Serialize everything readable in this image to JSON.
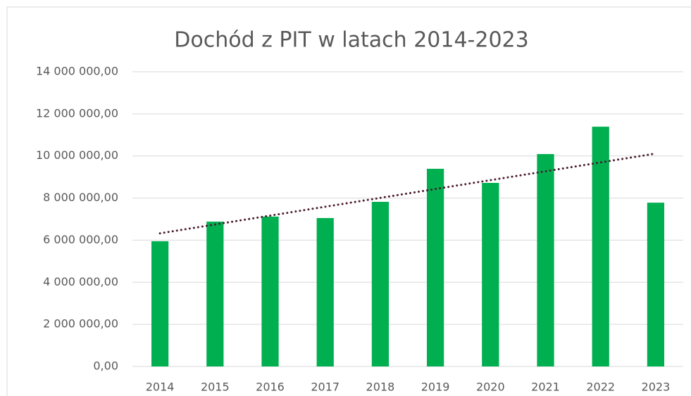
{
  "chart_data": {
    "type": "bar",
    "title": "Dochód z PIT w latach 2014-2023",
    "categories": [
      "2014",
      "2015",
      "2016",
      "2017",
      "2018",
      "2019",
      "2020",
      "2021",
      "2022",
      "2023"
    ],
    "values": [
      5950000,
      6880000,
      7120000,
      7050000,
      7820000,
      9390000,
      8720000,
      10090000,
      11390000,
      7780000
    ],
    "color": "#00b050",
    "ylim": [
      0,
      14000000
    ],
    "yticks": [
      {
        "value": 0,
        "label": "0,00"
      },
      {
        "value": 2000000,
        "label": "2 000 000,00"
      },
      {
        "value": 4000000,
        "label": "4 000 000,00"
      },
      {
        "value": 6000000,
        "label": "6 000 000,00"
      },
      {
        "value": 8000000,
        "label": "8 000 000,00"
      },
      {
        "value": 10000000,
        "label": "10 000 000,00"
      },
      {
        "value": 12000000,
        "label": "12 000 000,00"
      },
      {
        "value": 14000000,
        "label": "14 000 000,00"
      }
    ],
    "grid": true,
    "trendline": {
      "type": "linear",
      "color": "#4b1c2e"
    }
  }
}
